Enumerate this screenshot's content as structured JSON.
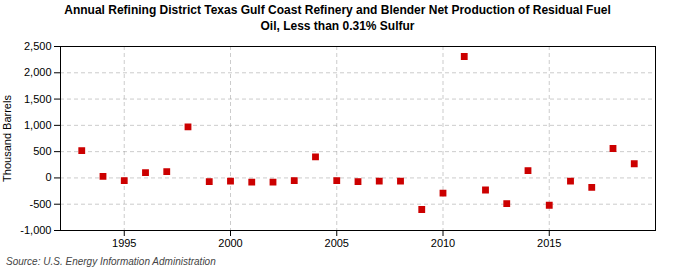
{
  "chart_data": {
    "type": "scatter",
    "title": "Annual Refining District Texas Gulf Coast Refinery and Blender Net Production of Residual Fuel\nOil, Less than 0.31% Sulfur",
    "ylabel": "Thousand Barrels",
    "source": "Source: U.S. Energy Information Administration",
    "x": [
      1993,
      1994,
      1995,
      1996,
      1997,
      1998,
      1999,
      2000,
      2001,
      2002,
      2003,
      2004,
      2005,
      2006,
      2007,
      2008,
      2009,
      2010,
      2011,
      2012,
      2013,
      2014,
      2015,
      2016,
      2017,
      2018,
      2019
    ],
    "values": [
      520,
      30,
      -50,
      100,
      120,
      970,
      -70,
      -60,
      -80,
      -80,
      -50,
      400,
      -50,
      -70,
      -60,
      -60,
      -600,
      -290,
      2310,
      -230,
      -490,
      140,
      -520,
      -60,
      -180,
      560,
      270
    ],
    "color": "#cc0000",
    "marker": "square",
    "grid": true,
    "xlim": [
      1992,
      2020
    ],
    "xticks": [
      1995,
      2000,
      2005,
      2010,
      2015
    ],
    "ylim": [
      -1000,
      2500
    ],
    "yticks": [
      {
        "value": -1000,
        "label": "-1,000"
      },
      -500,
      0,
      500,
      {
        "value": 1000,
        "label": "1,000"
      },
      {
        "value": 1500,
        "label": "1,500"
      },
      {
        "value": 2000,
        "label": "2,000"
      },
      {
        "value": 2500,
        "label": "2,500"
      }
    ]
  }
}
